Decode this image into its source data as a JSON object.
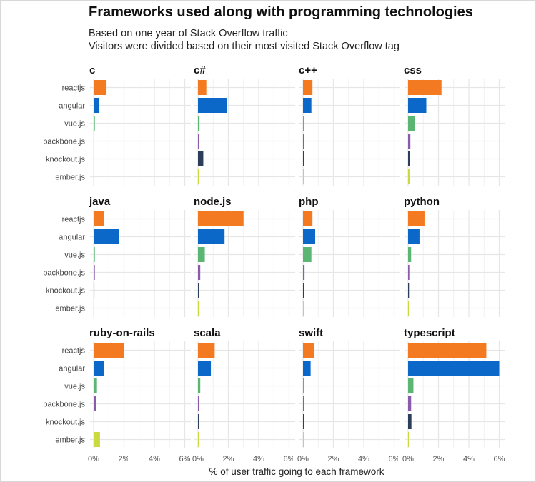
{
  "chart_data": {
    "type": "bar",
    "orientation": "horizontal",
    "title": "Frameworks used along with programming technologies",
    "subtitle": [
      "Based on one year of Stack Overflow traffic",
      "Visitors were divided based on their most visited Stack Overflow tag"
    ],
    "xlabel": "% of user traffic going to each framework",
    "ylabel": "",
    "xlim": [
      0,
      6.4
    ],
    "xticks": [
      0,
      2,
      4,
      6
    ],
    "xtick_labels": [
      "0%",
      "2%",
      "4%",
      "6%"
    ],
    "grid": true,
    "categories": [
      "reactjs",
      "angular",
      "vue.js",
      "backbone.js",
      "knockout.js",
      "ember.js"
    ],
    "colors": {
      "reactjs": "#F47A22",
      "angular": "#0B68C9",
      "vue.js": "#5BB573",
      "backbone.js": "#8B5BAB",
      "knockout.js": "#2C3E5A",
      "ember.js": "#C9DB3C"
    },
    "facets": [
      {
        "name": "c",
        "values": [
          0.85,
          0.38,
          0.08,
          0.03,
          0.04,
          0.02
        ]
      },
      {
        "name": "c#",
        "values": [
          0.55,
          1.9,
          0.1,
          0.05,
          0.35,
          0.02
        ]
      },
      {
        "name": "c++",
        "values": [
          0.62,
          0.55,
          0.08,
          0.03,
          0.06,
          0.02
        ]
      },
      {
        "name": "css",
        "values": [
          2.2,
          1.2,
          0.45,
          0.15,
          0.1,
          0.12
        ]
      },
      {
        "name": "java",
        "values": [
          0.7,
          1.65,
          0.08,
          0.08,
          0.05,
          0.03
        ]
      },
      {
        "name": "node.js",
        "values": [
          3.0,
          1.75,
          0.45,
          0.15,
          0.05,
          0.1
        ]
      },
      {
        "name": "php",
        "values": [
          0.62,
          0.8,
          0.55,
          0.1,
          0.08,
          0.02
        ]
      },
      {
        "name": "python",
        "values": [
          1.08,
          0.75,
          0.2,
          0.08,
          0.06,
          0.05
        ]
      },
      {
        "name": "ruby-on-rails",
        "values": [
          2.0,
          0.7,
          0.22,
          0.15,
          0.03,
          0.42
        ]
      },
      {
        "name": "scala",
        "values": [
          1.1,
          0.85,
          0.15,
          0.08,
          0.04,
          0.02
        ]
      },
      {
        "name": "swift",
        "values": [
          0.72,
          0.5,
          0.05,
          0.03,
          0.04,
          0.02
        ]
      },
      {
        "name": "typescript",
        "values": [
          5.15,
          6.0,
          0.35,
          0.2,
          0.22,
          0.02
        ]
      }
    ]
  }
}
